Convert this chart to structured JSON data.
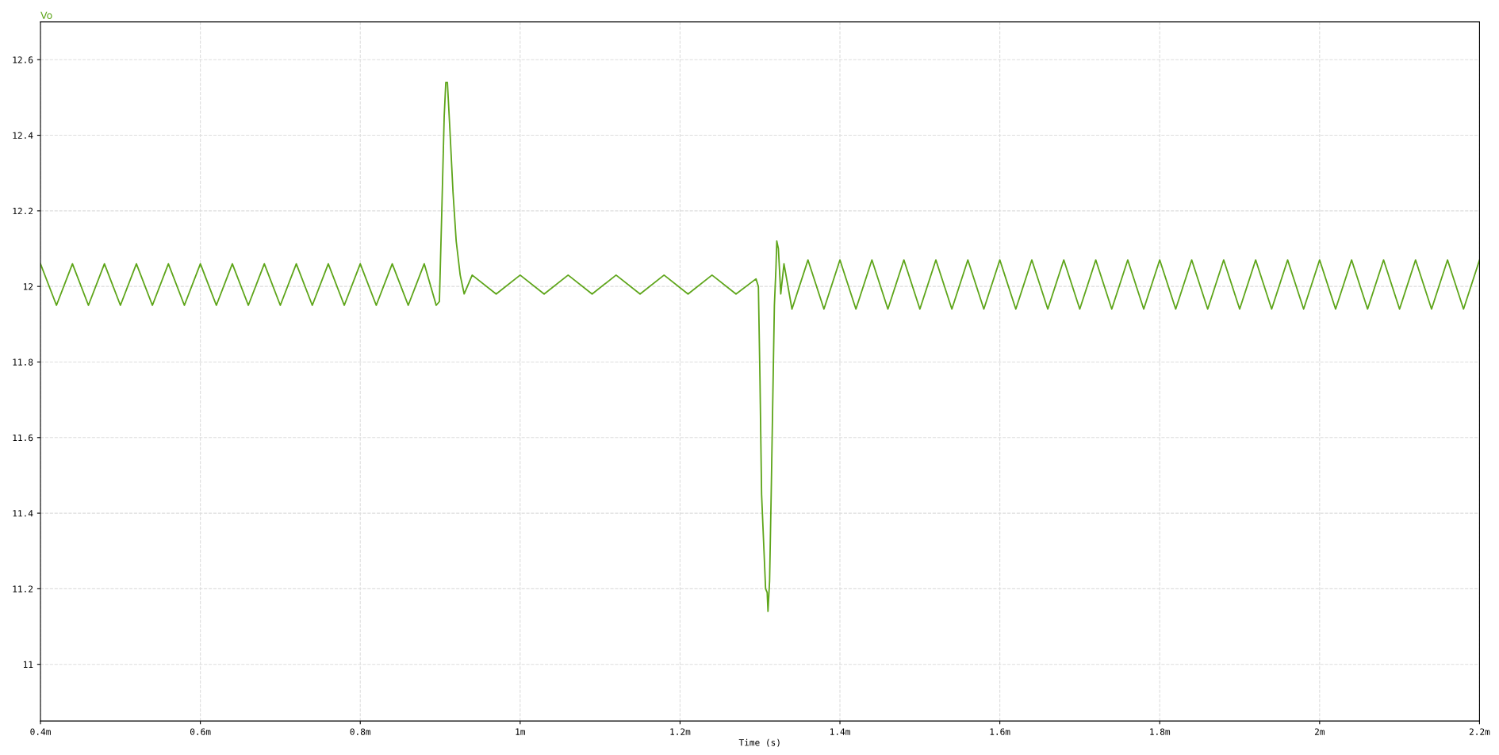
{
  "chart_data": {
    "type": "line",
    "xlabel": "Time (s)",
    "xlim": [
      0.4,
      2.2
    ],
    "xticks": [
      {
        "value": 0.4,
        "label": "0.4m"
      },
      {
        "value": 0.6,
        "label": "0.6m"
      },
      {
        "value": 0.8,
        "label": "0.8m"
      },
      {
        "value": 1,
        "label": "1m"
      },
      {
        "value": 1.2,
        "label": "1.2m"
      },
      {
        "value": 1.4,
        "label": "1.4m"
      },
      {
        "value": 1.6,
        "label": "1.6m"
      },
      {
        "value": 1.8,
        "label": "1.8m"
      },
      {
        "value": 2,
        "label": "2m"
      },
      {
        "value": 2.2,
        "label": "2.2m"
      }
    ],
    "ylim": [
      10.85,
      12.7
    ],
    "yticks": [
      11,
      11.2,
      11.4,
      11.6,
      11.8,
      12,
      12.2,
      12.4,
      12.6
    ],
    "grid": true,
    "marker": "none",
    "line_style": "solid",
    "series": [
      {
        "name": "Vo",
        "color": "#5ea51a",
        "x": [
          0.4,
          0.42,
          0.44,
          0.46,
          0.48,
          0.5,
          0.52,
          0.54,
          0.56,
          0.58,
          0.6,
          0.62,
          0.64,
          0.66,
          0.68,
          0.7,
          0.72,
          0.74,
          0.76,
          0.78,
          0.8,
          0.82,
          0.84,
          0.86,
          0.88,
          0.895,
          0.899,
          0.902,
          0.905,
          0.907,
          0.909,
          0.912,
          0.916,
          0.92,
          0.925,
          0.93,
          0.94,
          0.97,
          1.0,
          1.03,
          1.06,
          1.09,
          1.12,
          1.15,
          1.18,
          1.21,
          1.24,
          1.27,
          1.295,
          1.298,
          1.3,
          1.302,
          1.305,
          1.307,
          1.309,
          1.31,
          1.312,
          1.314,
          1.316,
          1.318,
          1.32,
          1.321,
          1.323,
          1.326,
          1.33,
          1.34,
          1.36,
          1.38,
          1.4,
          1.42,
          1.44,
          1.46,
          1.48,
          1.5,
          1.52,
          1.54,
          1.56,
          1.58,
          1.6,
          1.62,
          1.64,
          1.66,
          1.68,
          1.7,
          1.72,
          1.74,
          1.76,
          1.78,
          1.8,
          1.82,
          1.84,
          1.86,
          1.88,
          1.9,
          1.92,
          1.94,
          1.96,
          1.98,
          2.0,
          2.02,
          2.04,
          2.06,
          2.08,
          2.1,
          2.12,
          2.14,
          2.16,
          2.18,
          2.2
        ],
        "values": [
          12.06,
          11.95,
          12.06,
          11.95,
          12.06,
          11.95,
          12.06,
          11.95,
          12.06,
          11.95,
          12.06,
          11.95,
          12.06,
          11.95,
          12.06,
          11.95,
          12.06,
          11.95,
          12.06,
          11.95,
          12.06,
          11.95,
          12.06,
          11.95,
          12.06,
          11.95,
          11.96,
          12.2,
          12.45,
          12.54,
          12.54,
          12.42,
          12.25,
          12.12,
          12.03,
          11.98,
          12.03,
          11.98,
          12.03,
          11.98,
          12.03,
          11.98,
          12.03,
          11.98,
          12.03,
          11.98,
          12.03,
          11.98,
          12.02,
          12.0,
          11.75,
          11.45,
          11.3,
          11.2,
          11.19,
          11.14,
          11.22,
          11.45,
          11.7,
          11.95,
          12.05,
          12.12,
          12.1,
          11.98,
          12.06,
          11.94,
          12.07,
          11.94,
          12.07,
          11.94,
          12.07,
          11.94,
          12.07,
          11.94,
          12.07,
          11.94,
          12.07,
          11.94,
          12.07,
          11.94,
          12.07,
          11.94,
          12.07,
          11.94,
          12.07,
          11.94,
          12.07,
          11.94,
          12.07,
          11.94,
          12.07,
          11.94,
          12.07,
          11.94,
          12.07,
          11.94,
          12.07,
          11.94,
          12.07,
          11.94,
          12.07,
          11.94,
          12.07,
          11.94,
          12.07,
          11.94,
          12.07,
          11.94,
          12.07
        ]
      }
    ]
  }
}
